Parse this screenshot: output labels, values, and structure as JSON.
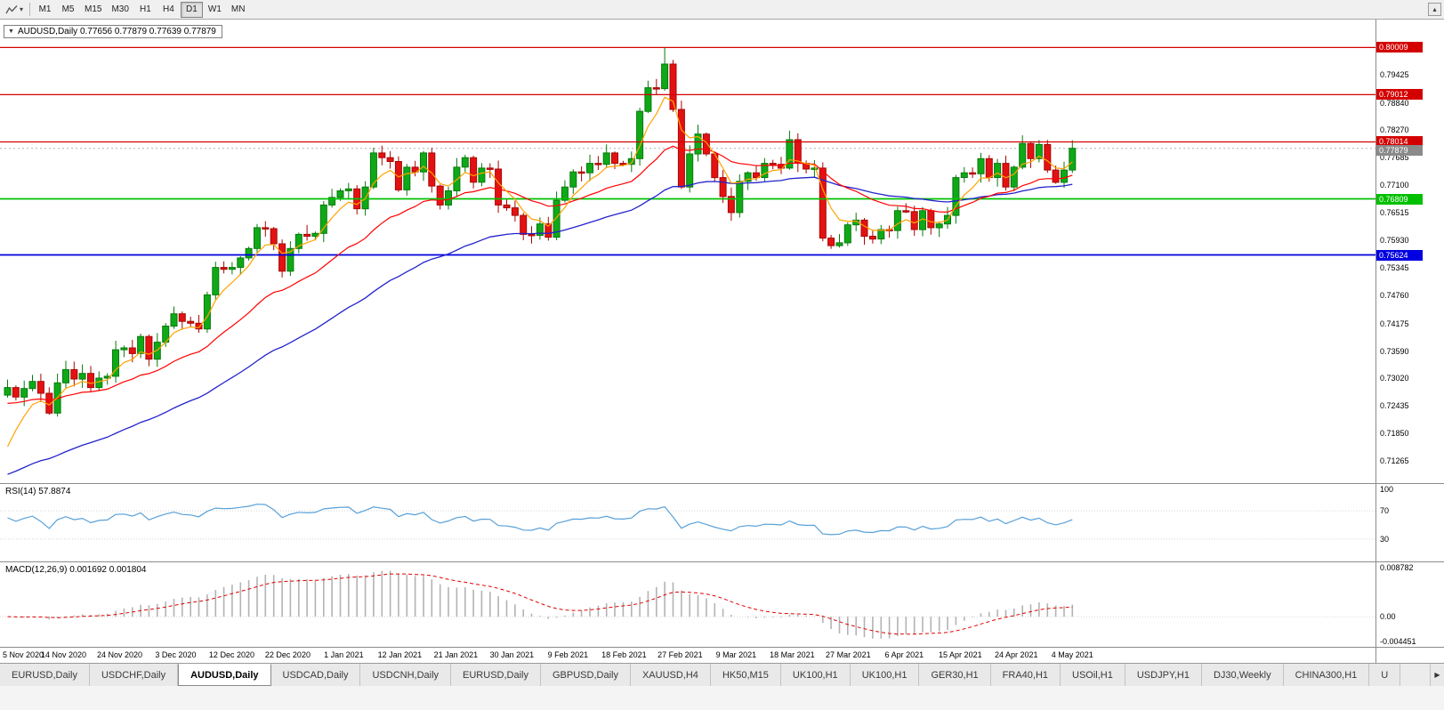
{
  "icons": {
    "collapse": "▼",
    "dropdown_caret": "▾",
    "scroll_up": "▴",
    "tab_scroll_right": "▶",
    "line_tool": "zigzag-line-tool"
  },
  "toolbar": {
    "timeframes": [
      {
        "label": "M1",
        "active": false
      },
      {
        "label": "M5",
        "active": false
      },
      {
        "label": "M15",
        "active": false
      },
      {
        "label": "M30",
        "active": false
      },
      {
        "label": "H1",
        "active": false
      },
      {
        "label": "H4",
        "active": false
      },
      {
        "label": "D1",
        "active": true
      },
      {
        "label": "W1",
        "active": false
      },
      {
        "label": "MN",
        "active": false
      }
    ]
  },
  "chart": {
    "symbol": "AUDUSD",
    "timeframe": "Daily",
    "title_full": "AUDUSD,Daily 0.77656 0.77879 0.77639 0.77879",
    "open": "0.77656",
    "high": "0.77879",
    "low": "0.77639",
    "close": "0.77879"
  },
  "price_axis": {
    "ticks": [
      "0.79425",
      "0.78840",
      "0.78270",
      "0.77685",
      "0.77100",
      "0.76515",
      "0.75930",
      "0.75345",
      "0.74760",
      "0.74175",
      "0.73590",
      "0.73020",
      "0.72435",
      "0.71850",
      "0.71265"
    ]
  },
  "levels": [
    {
      "value": 0.80009,
      "label": "0.80009",
      "color": "#d40000",
      "type": "resistance"
    },
    {
      "value": 0.79012,
      "label": "0.79012",
      "color": "#d40000",
      "type": "resistance"
    },
    {
      "value": 0.78014,
      "label": "0.78014",
      "color": "#d40000",
      "type": "resistance"
    },
    {
      "value": 0.77879,
      "label": "0.77879",
      "color": "#8a8a8a",
      "type": "current-price"
    },
    {
      "value": 0.76809,
      "label": "0.76809",
      "color": "#00c000",
      "type": "support"
    },
    {
      "value": 0.75624,
      "label": "0.75624",
      "color": "#0000e0",
      "type": "support"
    }
  ],
  "rsi": {
    "text": "RSI(14) 57.8874",
    "ticks": [
      "100",
      "70",
      "30"
    ]
  },
  "macd": {
    "text": "MACD(12,26,9) 0.001692 0.001804",
    "ticks": [
      "0.008782",
      "0.00",
      "-0.004451"
    ]
  },
  "date_axis": [
    "5 Nov 2020",
    "14 Nov 2020",
    "24 Nov 2020",
    "3 Dec 2020",
    "12 Dec 2020",
    "22 Dec 2020",
    "1 Jan 2021",
    "12 Jan 2021",
    "21 Jan 2021",
    "30 Jan 2021",
    "9 Feb 2021",
    "18 Feb 2021",
    "27 Feb 2021",
    "9 Mar 2021",
    "18 Mar 2021",
    "27 Mar 2021",
    "6 Apr 2021",
    "15 Apr 2021",
    "24 Apr 2021",
    "4 May 2021"
  ],
  "tabs": [
    {
      "label": "EURUSD,Daily",
      "active": false
    },
    {
      "label": "USDCHF,Daily",
      "active": false
    },
    {
      "label": "AUDUSD,Daily",
      "active": true
    },
    {
      "label": "USDCAD,Daily",
      "active": false
    },
    {
      "label": "USDCNH,Daily",
      "active": false
    },
    {
      "label": "EURUSD,Daily",
      "active": false
    },
    {
      "label": "GBPUSD,Daily",
      "active": false
    },
    {
      "label": "XAUUSD,H4",
      "active": false
    },
    {
      "label": "HK50,M15",
      "active": false
    },
    {
      "label": "UK100,H1",
      "active": false
    },
    {
      "label": "UK100,H1",
      "active": false
    },
    {
      "label": "GER30,H1",
      "active": false
    },
    {
      "label": "FRA40,H1",
      "active": false
    },
    {
      "label": "USOil,H1",
      "active": false
    },
    {
      "label": "USDJPY,H1",
      "active": false
    },
    {
      "label": "DJ30,Weekly",
      "active": false
    },
    {
      "label": "CHINA300,H1",
      "active": false
    },
    {
      "label": "U",
      "active": false
    }
  ],
  "chart_data": {
    "type": "candlestick",
    "symbol": "AUDUSD",
    "timeframe": "Daily",
    "x_range": [
      "5 Nov 2020",
      "4 May 2021"
    ],
    "price_range": [
      0.708,
      0.806
    ],
    "current_price": 0.77879,
    "closes": [
      0.7282,
      0.7262,
      0.728,
      0.7295,
      0.727,
      0.7228,
      0.7292,
      0.732,
      0.73,
      0.7312,
      0.7282,
      0.7302,
      0.7306,
      0.7362,
      0.7366,
      0.7354,
      0.739,
      0.7342,
      0.7378,
      0.7412,
      0.7438,
      0.7422,
      0.7418,
      0.7406,
      0.7478,
      0.7536,
      0.7532,
      0.7536,
      0.7556,
      0.7576,
      0.762,
      0.7618,
      0.7586,
      0.7528,
      0.7576,
      0.7606,
      0.7602,
      0.7608,
      0.7668,
      0.7684,
      0.7698,
      0.7702,
      0.766,
      0.7706,
      0.7778,
      0.7768,
      0.776,
      0.77,
      0.7748,
      0.7738,
      0.7778,
      0.7708,
      0.7668,
      0.7698,
      0.7748,
      0.7768,
      0.7716,
      0.7746,
      0.7744,
      0.7668,
      0.7662,
      0.7646,
      0.7606,
      0.7604,
      0.7628,
      0.76,
      0.7678,
      0.7706,
      0.7738,
      0.7736,
      0.7756,
      0.7754,
      0.7778,
      0.7756,
      0.7754,
      0.7766,
      0.7866,
      0.7916,
      0.7914,
      0.7966,
      0.787,
      0.7706,
      0.7776,
      0.7818,
      0.7776,
      0.7726,
      0.7686,
      0.7652,
      0.7718,
      0.7736,
      0.7726,
      0.7756,
      0.7754,
      0.7746,
      0.7806,
      0.7756,
      0.7744,
      0.7746,
      0.7598,
      0.7582,
      0.7588,
      0.7626,
      0.7636,
      0.7602,
      0.7596,
      0.7616,
      0.7614,
      0.7656,
      0.7654,
      0.7616,
      0.7656,
      0.762,
      0.7628,
      0.7646,
      0.7726,
      0.7736,
      0.7734,
      0.7766,
      0.7726,
      0.7756,
      0.7706,
      0.7748,
      0.7798,
      0.7766,
      0.7796,
      0.7742,
      0.7716,
      0.7742,
      0.77879
    ],
    "high_overrides": [
      {
        "index": 79,
        "value": 0.8001
      }
    ],
    "levels": [
      0.80009,
      0.79012,
      0.78014,
      0.76809,
      0.75624
    ],
    "moving_averages": [
      {
        "name": "fast-ma",
        "period": 5,
        "color": "#ffa200"
      },
      {
        "name": "mid-ma",
        "period": 20,
        "color": "#ff0000"
      },
      {
        "name": "slow-ma",
        "period": 45,
        "color": "#2323cc"
      }
    ],
    "rsi_period": 14,
    "rsi_last": 57.8874,
    "rsi_levels": [
      70,
      30
    ],
    "rsi_axis_range": [
      -2,
      108
    ],
    "macd": {
      "fast": 12,
      "slow": 26,
      "signal": 9,
      "last": 0.001692,
      "signal_last": 0.001804
    },
    "macd_axis_range": [
      -0.0054,
      0.00973
    ],
    "colors": {
      "up": "#0fa918",
      "up_border": "#067a0c",
      "down": "#e31212",
      "down_border": "#a80505",
      "histogram": "#b3b3b3",
      "rsi_line": "#58a0d8",
      "current_price_line": "#b0b0b0"
    },
    "legend_position": "none",
    "grid": false
  }
}
